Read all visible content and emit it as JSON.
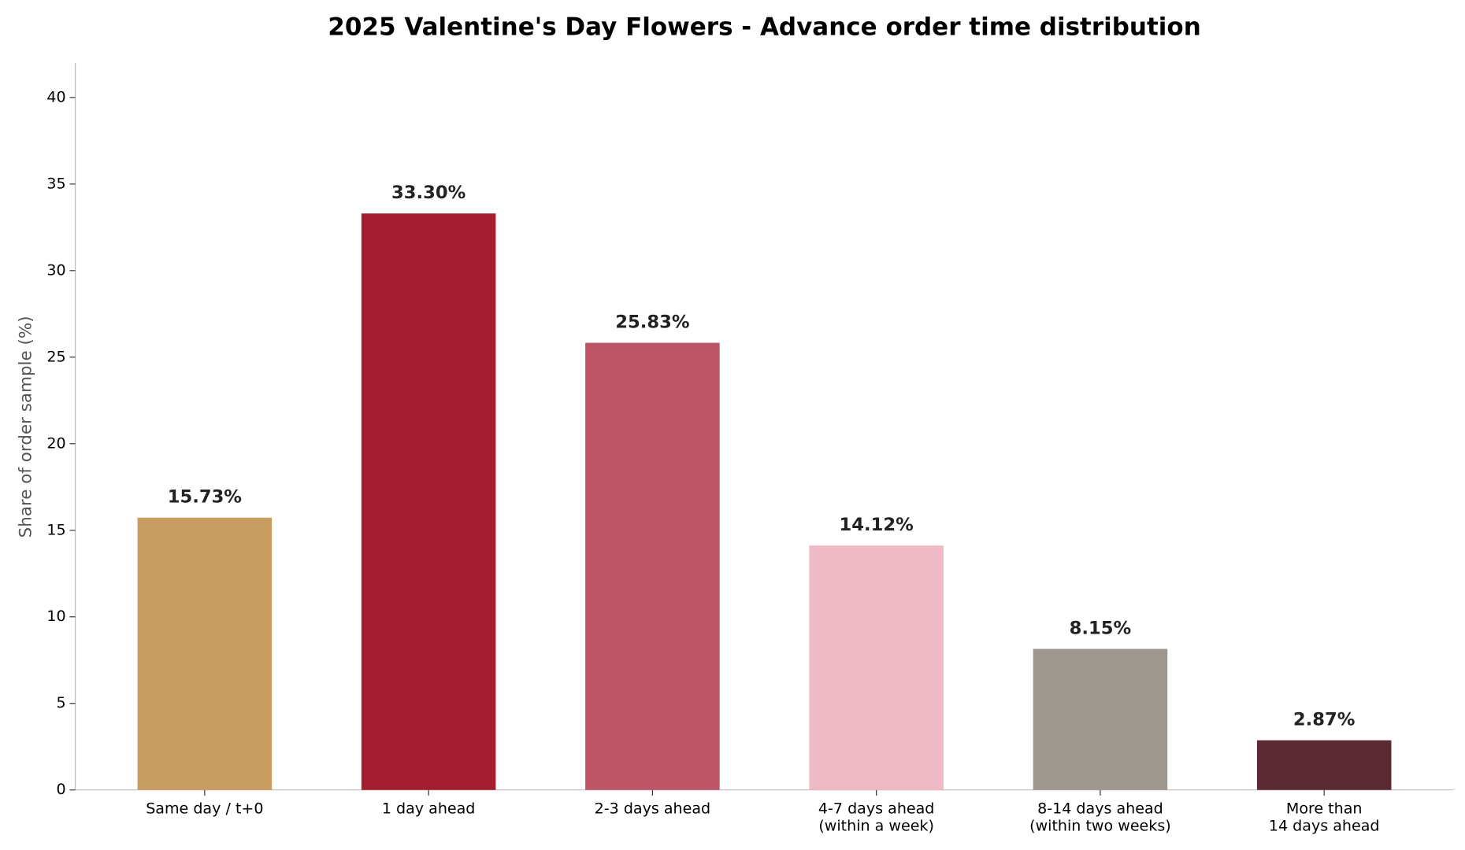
{
  "chart_data": {
    "type": "bar",
    "title": "2025 Valentine's Day Flowers - Advance order time distribution",
    "y_label": "Share of order sample (%)",
    "categories": [
      "Same day / t+0",
      "1 day ahead",
      "2-3 days ahead",
      "4-7 days ahead\n(within a week)",
      "8-14 days ahead\n(within two weeks)",
      "More than\n14 days ahead"
    ],
    "values": [
      15.73,
      33.3,
      25.83,
      14.12,
      8.15,
      2.87
    ],
    "value_labels": [
      "15.73%",
      "33.30%",
      "25.83%",
      "14.12%",
      "8.15%",
      "2.87%"
    ],
    "colors": [
      "#c99d5f",
      "#a31e2e",
      "#be5565",
      "#efbac5",
      "#9d9790",
      "#5c2a35"
    ],
    "ylim": [
      0,
      42
    ],
    "yticks": [
      0,
      5,
      10,
      15,
      20,
      25,
      30,
      35,
      40
    ],
    "grid": false
  }
}
